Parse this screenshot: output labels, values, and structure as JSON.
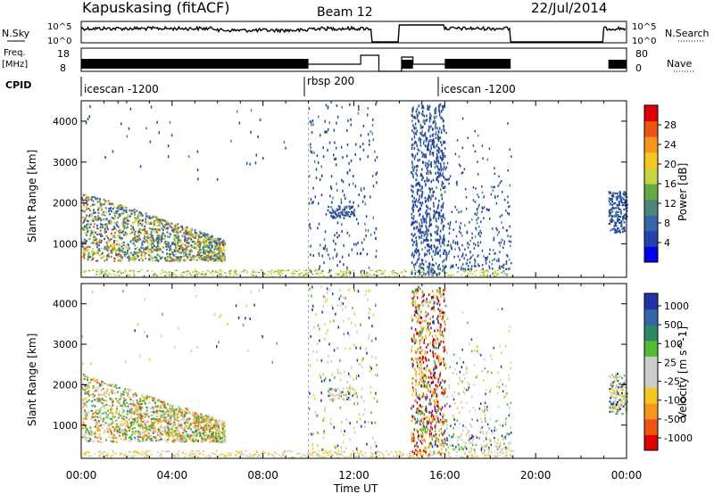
{
  "header": {
    "station": "Kapuskasing (fitACF)",
    "beam": "Beam 12",
    "date": "22/Jul/2014"
  },
  "top_panels": {
    "nsky_label": "N.Sky",
    "nsky_ticks": [
      "10^5",
      "10^0"
    ],
    "nsearch_label": "N.Search",
    "nsearch_ticks": [
      "10^5",
      "10^0"
    ],
    "freq_label_1": "Freq.",
    "freq_label_2": "[MHz]",
    "freq_ticks": [
      "18",
      "8"
    ],
    "nave_label": "Nave",
    "nave_ticks": [
      "80",
      "0"
    ],
    "cpid_label": "CPID",
    "cpid_segments": [
      {
        "label": "icescan -1200",
        "start_h": 0,
        "end_h": 10
      },
      {
        "label": "rbsp 200",
        "start_h": 10,
        "end_h": 16
      },
      {
        "label": "icescan -1200",
        "start_h": 16,
        "end_h": 24
      }
    ]
  },
  "chart_data": [
    {
      "type": "heatmap",
      "name": "power",
      "ylabel": "Slant Range [km]",
      "colorbar_label": "Power [dB]",
      "ylim": [
        180,
        4500
      ],
      "yticks": [
        "1000",
        "2000",
        "3000",
        "4000"
      ],
      "colorbar_ticks": [
        "4",
        "8",
        "12",
        "16",
        "20",
        "24",
        "28"
      ],
      "colorbar_colors": [
        "#0000ee",
        "#2244aa",
        "#3366aa",
        "#4c8877",
        "#66aa44",
        "#c8d440",
        "#f6c81e",
        "#f7961e",
        "#ee5510",
        "#dd0000"
      ],
      "x_range_h": [
        0,
        24
      ]
    },
    {
      "type": "heatmap",
      "name": "velocity",
      "ylabel": "Slant Range [km]",
      "colorbar_label": "Velocity [m s^-1]",
      "ylim": [
        180,
        4500
      ],
      "yticks": [
        "1000",
        "2000",
        "3000",
        "4000"
      ],
      "colorbar_ticks": [
        "1000",
        "500",
        "100",
        "25",
        "-25",
        "-100",
        "-500",
        "-1000"
      ],
      "colorbar_colors": [
        "#2233aa",
        "#3366aa",
        "#2e8866",
        "#55bb33",
        "#cccccc",
        "#cccccc",
        "#f6c81e",
        "#f7961e",
        "#ee5510",
        "#dd0000"
      ],
      "xlabel": "Time UT",
      "xticks": [
        "00:00",
        "04:00",
        "08:00",
        "12:00",
        "16:00",
        "20:00",
        "00:00"
      ],
      "x_range_h": [
        0,
        24
      ]
    }
  ]
}
